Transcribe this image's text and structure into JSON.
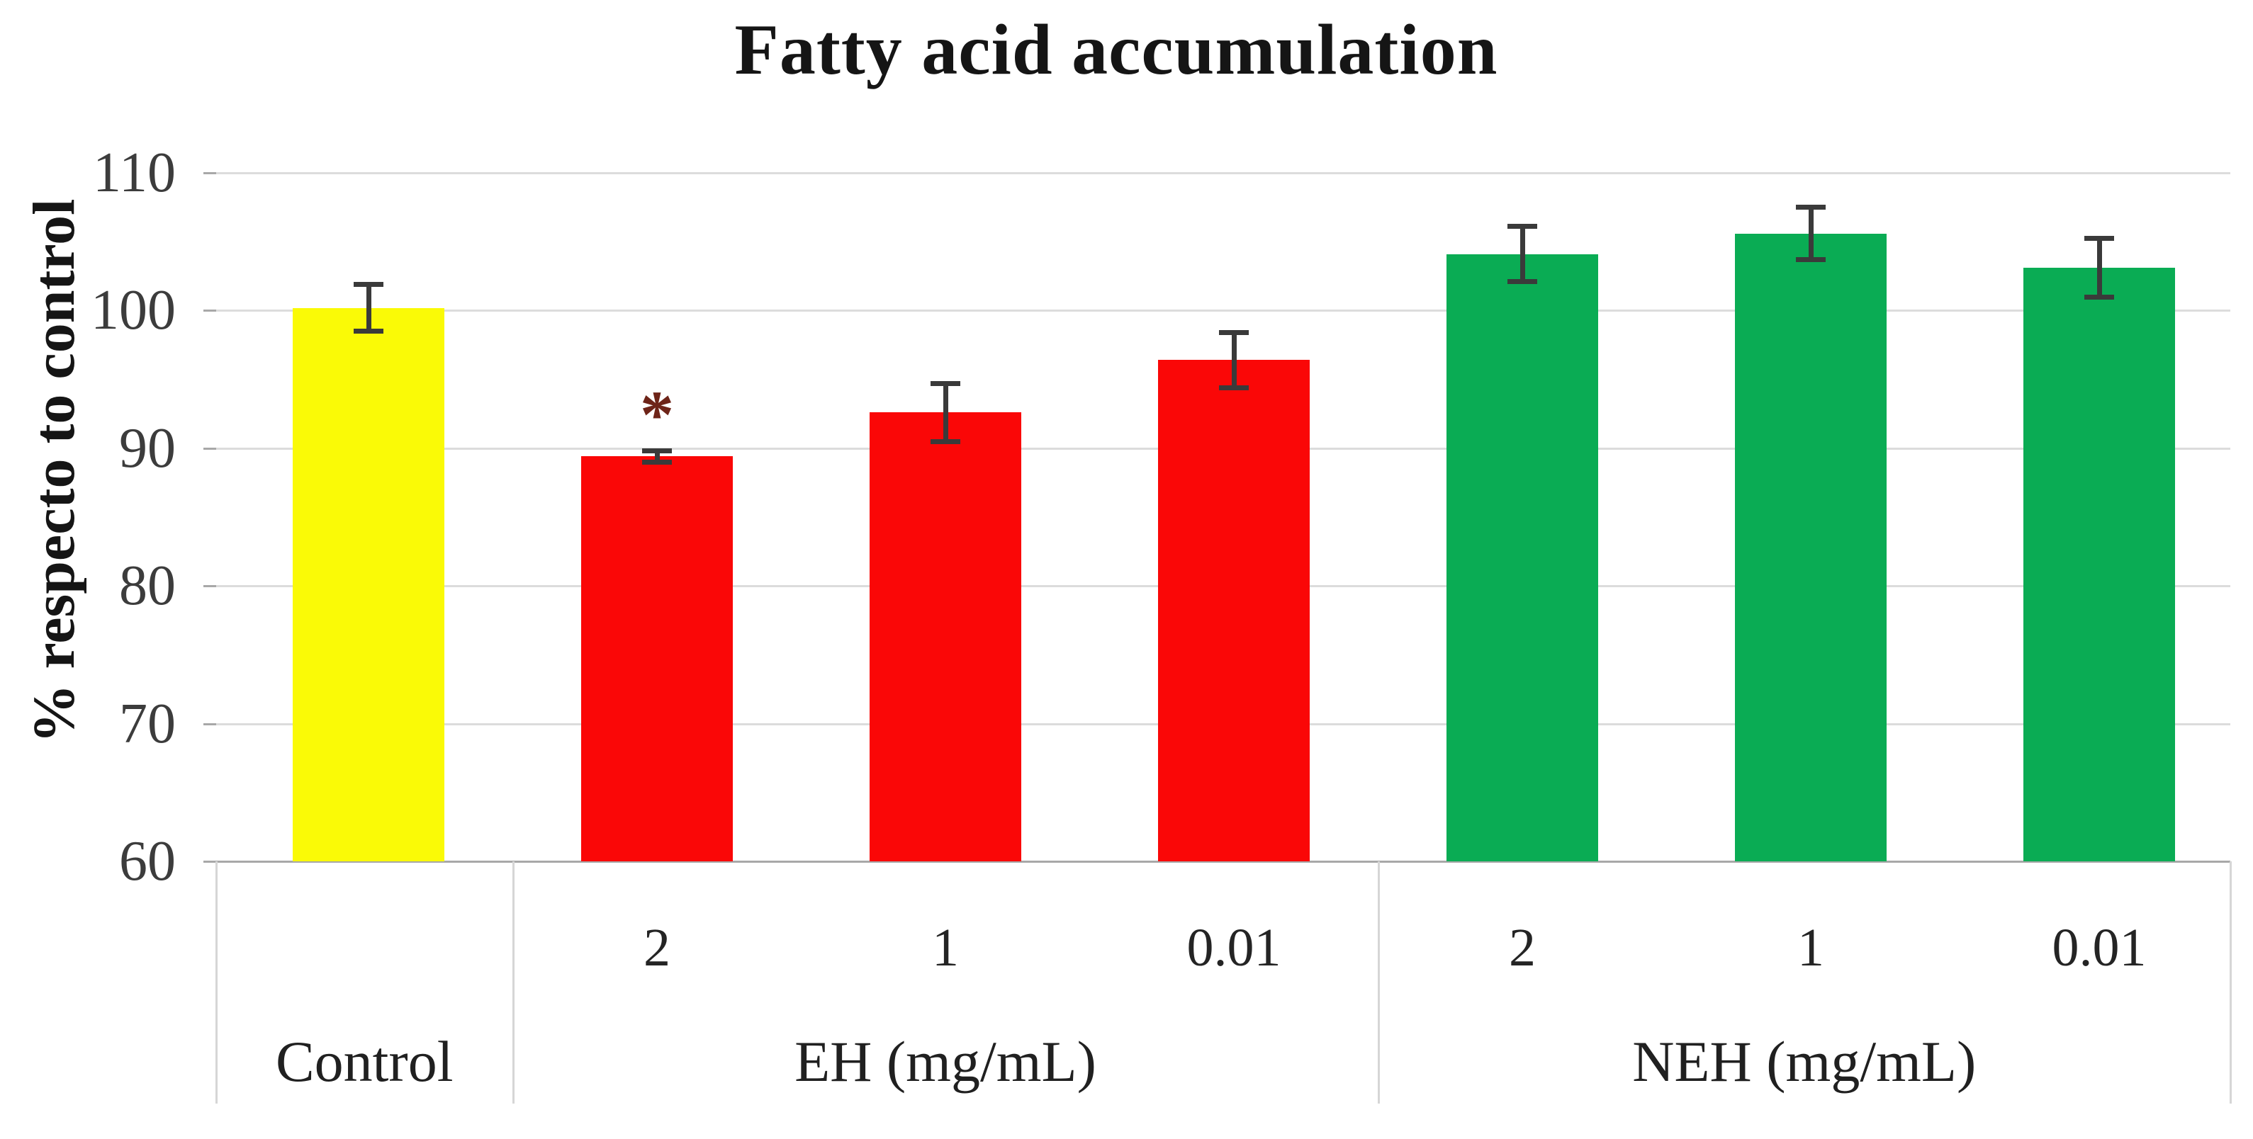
{
  "chart_data": {
    "type": "bar",
    "title": "Fatty acid accumulation",
    "ylabel": "% respecto to control",
    "xlabel": "",
    "ylim": [
      60,
      110
    ],
    "yticks": [
      60,
      70,
      80,
      90,
      100,
      110
    ],
    "grid": "horizontal",
    "legend_position": "none",
    "groups": [
      {
        "label": "Control",
        "bars": [
          {
            "tick": "",
            "value": 100.2,
            "error": 1.9,
            "color_key": "control",
            "annotation": ""
          }
        ]
      },
      {
        "label": "EH (mg/mL)",
        "bars": [
          {
            "tick": "2",
            "value": 89.4,
            "error": 0.6,
            "color_key": "eh",
            "annotation": "*"
          },
          {
            "tick": "1",
            "value": 92.6,
            "error": 2.3,
            "color_key": "eh",
            "annotation": ""
          },
          {
            "tick": "0.01",
            "value": 96.4,
            "error": 2.2,
            "color_key": "eh",
            "annotation": ""
          }
        ]
      },
      {
        "label": "NEH (mg/mL)",
        "bars": [
          {
            "tick": "2",
            "value": 104.1,
            "error": 2.2,
            "color_key": "neh",
            "annotation": ""
          },
          {
            "tick": "1",
            "value": 105.6,
            "error": 2.1,
            "color_key": "neh",
            "annotation": ""
          },
          {
            "tick": "0.01",
            "value": 103.1,
            "error": 2.3,
            "color_key": "neh",
            "annotation": ""
          }
        ]
      }
    ],
    "colors": {
      "control": "#FAFA06",
      "eh": "#FA0707",
      "neh": "#0AAC54",
      "error_bar": "#3a3a3a",
      "gridline": "#dcdcdc",
      "axis_line": "#a8a8a8",
      "table_border": "#d6d6d6",
      "annotation": "#6e2418",
      "title_text": "#151515",
      "tick_text": "#3c3c3c"
    }
  }
}
